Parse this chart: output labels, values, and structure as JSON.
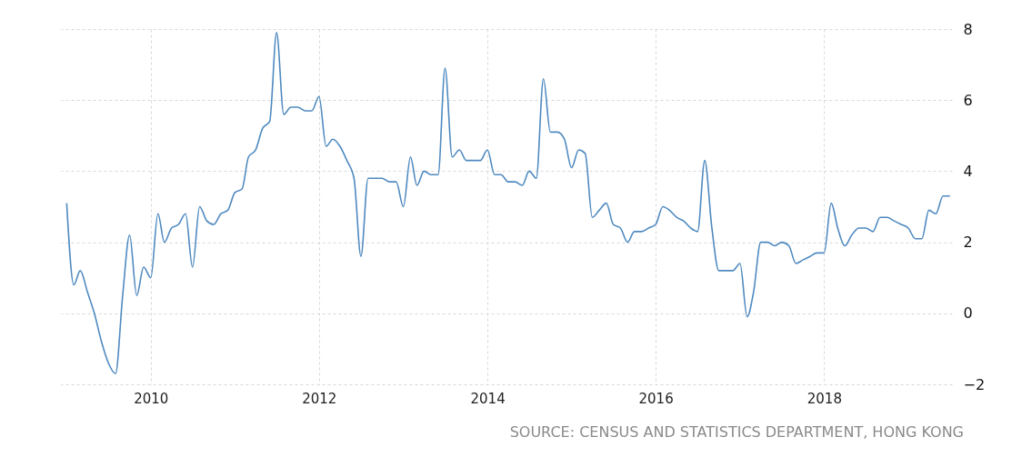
{
  "chart_data": {
    "type": "line",
    "x": [
      "2009-01",
      "2009-02",
      "2009-03",
      "2009-04",
      "2009-05",
      "2009-06",
      "2009-07",
      "2009-08",
      "2009-09",
      "2009-10",
      "2009-11",
      "2009-12",
      "2010-01",
      "2010-02",
      "2010-03",
      "2010-04",
      "2010-05",
      "2010-06",
      "2010-07",
      "2010-08",
      "2010-09",
      "2010-10",
      "2010-11",
      "2010-12",
      "2011-01",
      "2011-02",
      "2011-03",
      "2011-04",
      "2011-05",
      "2011-06",
      "2011-07",
      "2011-08",
      "2011-09",
      "2011-10",
      "2011-11",
      "2011-12",
      "2012-01",
      "2012-02",
      "2012-03",
      "2012-04",
      "2012-05",
      "2012-06",
      "2012-07",
      "2012-08",
      "2012-09",
      "2012-10",
      "2012-11",
      "2012-12",
      "2013-01",
      "2013-02",
      "2013-03",
      "2013-04",
      "2013-05",
      "2013-06",
      "2013-07",
      "2013-08",
      "2013-09",
      "2013-10",
      "2013-11",
      "2013-12",
      "2014-01",
      "2014-02",
      "2014-03",
      "2014-04",
      "2014-05",
      "2014-06",
      "2014-07",
      "2014-08",
      "2014-09",
      "2014-10",
      "2014-11",
      "2014-12",
      "2015-01",
      "2015-02",
      "2015-03",
      "2015-04",
      "2015-05",
      "2015-06",
      "2015-07",
      "2015-08",
      "2015-09",
      "2015-10",
      "2015-11",
      "2015-12",
      "2016-01",
      "2016-02",
      "2016-03",
      "2016-04",
      "2016-05",
      "2016-06",
      "2016-07",
      "2016-08",
      "2016-09",
      "2016-10",
      "2016-11",
      "2016-12",
      "2017-01",
      "2017-02",
      "2017-03",
      "2017-04",
      "2017-05",
      "2017-06",
      "2017-07",
      "2017-08",
      "2017-09",
      "2017-10",
      "2017-11",
      "2017-12",
      "2018-01",
      "2018-02",
      "2018-03",
      "2018-04",
      "2018-05",
      "2018-06",
      "2018-07",
      "2018-08",
      "2018-09",
      "2018-10",
      "2018-11",
      "2018-12",
      "2019-01",
      "2019-02",
      "2019-03",
      "2019-04",
      "2019-05",
      "2019-06",
      "2019-07"
    ],
    "series": [
      {
        "color": "#4f8ac0",
        "values": [
          3.1,
          0.8,
          1.2,
          0.6,
          0.0,
          -0.8,
          -1.4,
          -1.7,
          0.5,
          2.2,
          0.5,
          1.3,
          1.0,
          2.8,
          2.0,
          2.4,
          2.5,
          2.8,
          1.3,
          3.0,
          2.6,
          2.5,
          2.8,
          2.9,
          3.4,
          3.5,
          4.4,
          4.6,
          5.2,
          5.4,
          7.9,
          5.6,
          5.8,
          5.8,
          5.7,
          5.7,
          6.1,
          4.7,
          4.9,
          4.7,
          4.3,
          3.8,
          1.6,
          3.8,
          3.8,
          3.8,
          3.7,
          3.7,
          3.0,
          4.4,
          3.6,
          4.0,
          3.9,
          3.9,
          6.9,
          4.4,
          4.6,
          4.3,
          4.3,
          4.3,
          4.6,
          3.9,
          3.9,
          3.7,
          3.7,
          3.6,
          4.0,
          3.8,
          6.6,
          5.1,
          5.1,
          4.9,
          4.1,
          4.6,
          4.5,
          2.7,
          2.9,
          3.1,
          2.5,
          2.4,
          2.0,
          2.3,
          2.3,
          2.4,
          2.5,
          3.0,
          2.9,
          2.7,
          2.6,
          2.4,
          2.3,
          4.3,
          2.4,
          1.2,
          1.2,
          1.2,
          1.4,
          -0.1,
          0.6,
          2.0,
          2.0,
          1.9,
          2.0,
          1.9,
          1.4,
          1.5,
          1.6,
          1.7,
          1.7,
          3.1,
          2.4,
          1.9,
          2.2,
          2.4,
          2.4,
          2.3,
          2.7,
          2.7,
          2.6,
          2.5,
          2.4,
          2.1,
          2.1,
          2.9,
          2.8,
          3.3,
          3.3
        ]
      }
    ],
    "xlim": [
      "2008-12-07",
      "2019-07-10"
    ],
    "xticks": [
      "2010",
      "2012",
      "2014",
      "2016",
      "2018"
    ],
    "ylim": [
      -2,
      8
    ],
    "yticks": [
      -2,
      0,
      2,
      4,
      6,
      8
    ],
    "grid": true,
    "marker": "none",
    "line_style": "solid",
    "annotations": [
      "SOURCE: CENSUS AND STATISTICS DEPARTMENT, HONG KONG"
    ]
  }
}
